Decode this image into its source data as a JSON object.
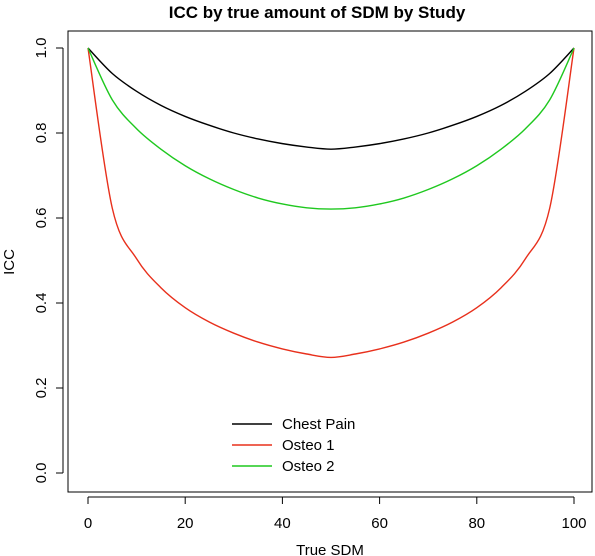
{
  "chart_data": {
    "type": "line",
    "title": "ICC by true amount of SDM by Study",
    "xlabel": "True SDM",
    "ylabel": "ICC",
    "xlim": [
      0,
      100
    ],
    "ylim": [
      0,
      1
    ],
    "x_ticks": [
      "0",
      "20",
      "40",
      "60",
      "80",
      "100"
    ],
    "y_ticks": [
      "0.0",
      "0.2",
      "0.4",
      "0.6",
      "0.8",
      "1.0"
    ],
    "grid": false,
    "legend_position": "bottom-center",
    "x": [
      0,
      5,
      10,
      15,
      20,
      25,
      30,
      35,
      40,
      45,
      50,
      55,
      60,
      65,
      70,
      75,
      80,
      85,
      90,
      95,
      100
    ],
    "series": [
      {
        "name": "Chest Pain",
        "color": "#000000",
        "values": [
          1.0,
          0.94,
          0.898,
          0.865,
          0.839,
          0.818,
          0.8,
          0.786,
          0.775,
          0.767,
          0.762,
          0.767,
          0.775,
          0.786,
          0.8,
          0.818,
          0.839,
          0.865,
          0.898,
          0.94,
          1.0
        ]
      },
      {
        "name": "Osteo 1",
        "color": "#e8301c",
        "values": [
          1.0,
          0.623,
          0.504,
          0.436,
          0.389,
          0.355,
          0.329,
          0.308,
          0.292,
          0.28,
          0.272,
          0.28,
          0.292,
          0.308,
          0.329,
          0.355,
          0.389,
          0.436,
          0.504,
          0.623,
          1.0
        ]
      },
      {
        "name": "Osteo 2",
        "color": "#1fc81f",
        "values": [
          1.0,
          0.878,
          0.81,
          0.762,
          0.723,
          0.692,
          0.667,
          0.647,
          0.633,
          0.624,
          0.621,
          0.624,
          0.633,
          0.647,
          0.667,
          0.692,
          0.723,
          0.762,
          0.81,
          0.878,
          1.0
        ]
      }
    ]
  }
}
